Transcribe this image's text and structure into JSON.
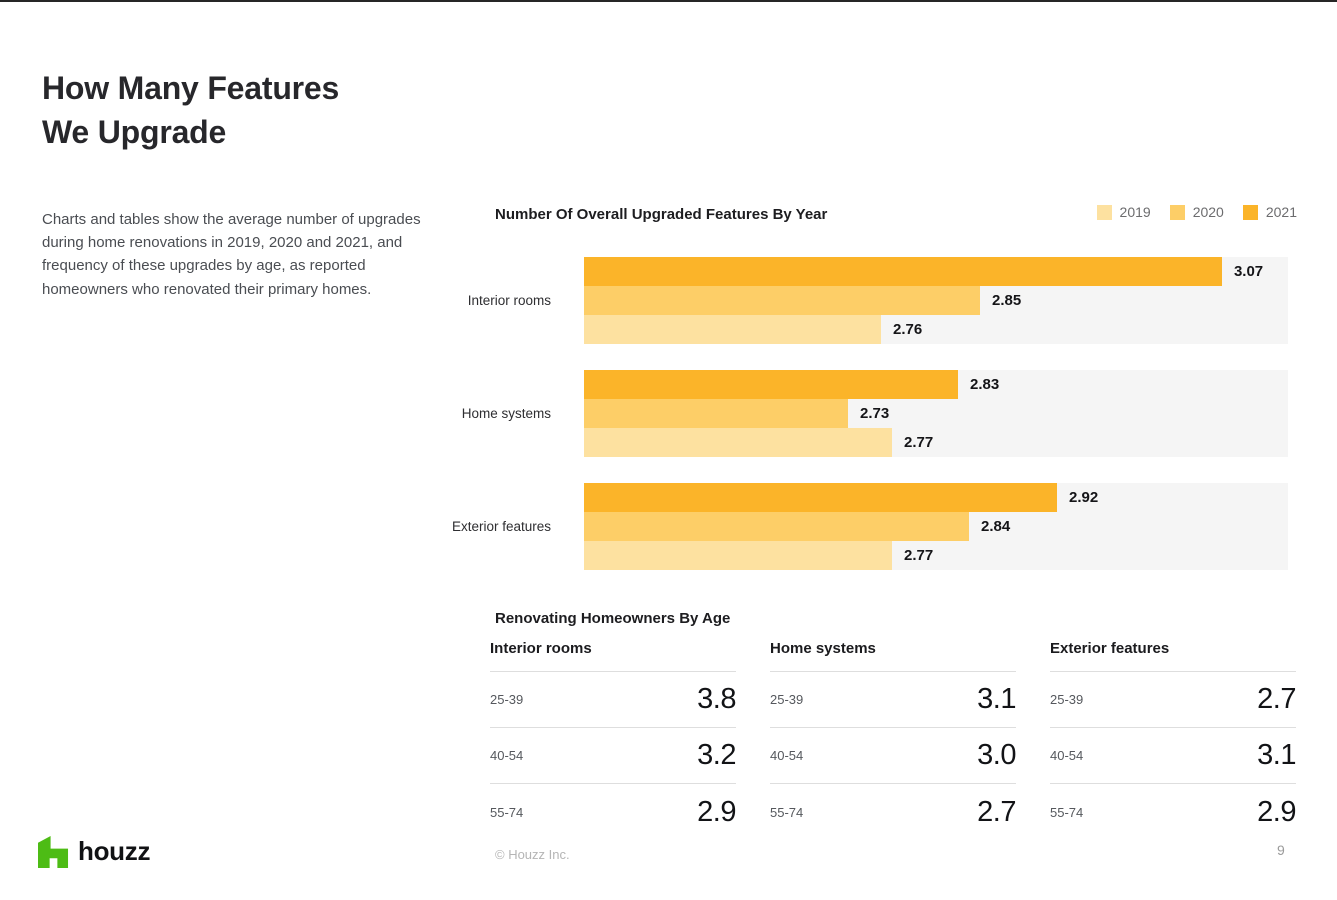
{
  "page": {
    "title_line1": "How Many Features",
    "title_line2": "We Upgrade",
    "intro": "Charts and tables show the average number of upgrades during home renovations in 2019, 2020 and 2021, and frequency of these upgrades by age, as reported homeowners who renovated their primary homes.",
    "page_number": "9"
  },
  "chart_data": {
    "type": "bar",
    "orientation": "horizontal",
    "title": "Number Of Overall Upgraded Features By Year",
    "categories": [
      "Interior rooms",
      "Home systems",
      "Exterior features"
    ],
    "series": [
      {
        "name": "2019",
        "color": "#FDE1A0",
        "values": [
          "2.76",
          "2.77",
          "2.77"
        ]
      },
      {
        "name": "2020",
        "color": "#FDCE67",
        "values": [
          "2.85",
          "2.73",
          "2.84"
        ]
      },
      {
        "name": "2021",
        "color": "#FBB429",
        "values": [
          "3.07",
          "2.83",
          "2.92"
        ]
      }
    ],
    "bar_order_top_to_bottom": [
      "2021",
      "2020",
      "2019"
    ],
    "axis": {
      "min": 2.49,
      "max": 3.13
    },
    "legend_position": "top-right",
    "track_color": "#F5F5F5"
  },
  "age_table": {
    "title": "Renovating Homeowners By Age",
    "columns": [
      {
        "header": "Interior rooms",
        "rows": [
          {
            "age": "25-39",
            "value": "3.8"
          },
          {
            "age": "40-54",
            "value": "3.2"
          },
          {
            "age": "55-74",
            "value": "2.9"
          }
        ]
      },
      {
        "header": "Home systems",
        "rows": [
          {
            "age": "25-39",
            "value": "3.1"
          },
          {
            "age": "40-54",
            "value": "3.0"
          },
          {
            "age": "55-74",
            "value": "2.7"
          }
        ]
      },
      {
        "header": "Exterior features",
        "rows": [
          {
            "age": "25-39",
            "value": "2.7"
          },
          {
            "age": "40-54",
            "value": "3.1"
          },
          {
            "age": "55-74",
            "value": "2.9"
          }
        ]
      }
    ]
  },
  "footer": {
    "brand": "houzz",
    "brand_color": "#4DBC15",
    "copyright": "© Houzz Inc."
  }
}
